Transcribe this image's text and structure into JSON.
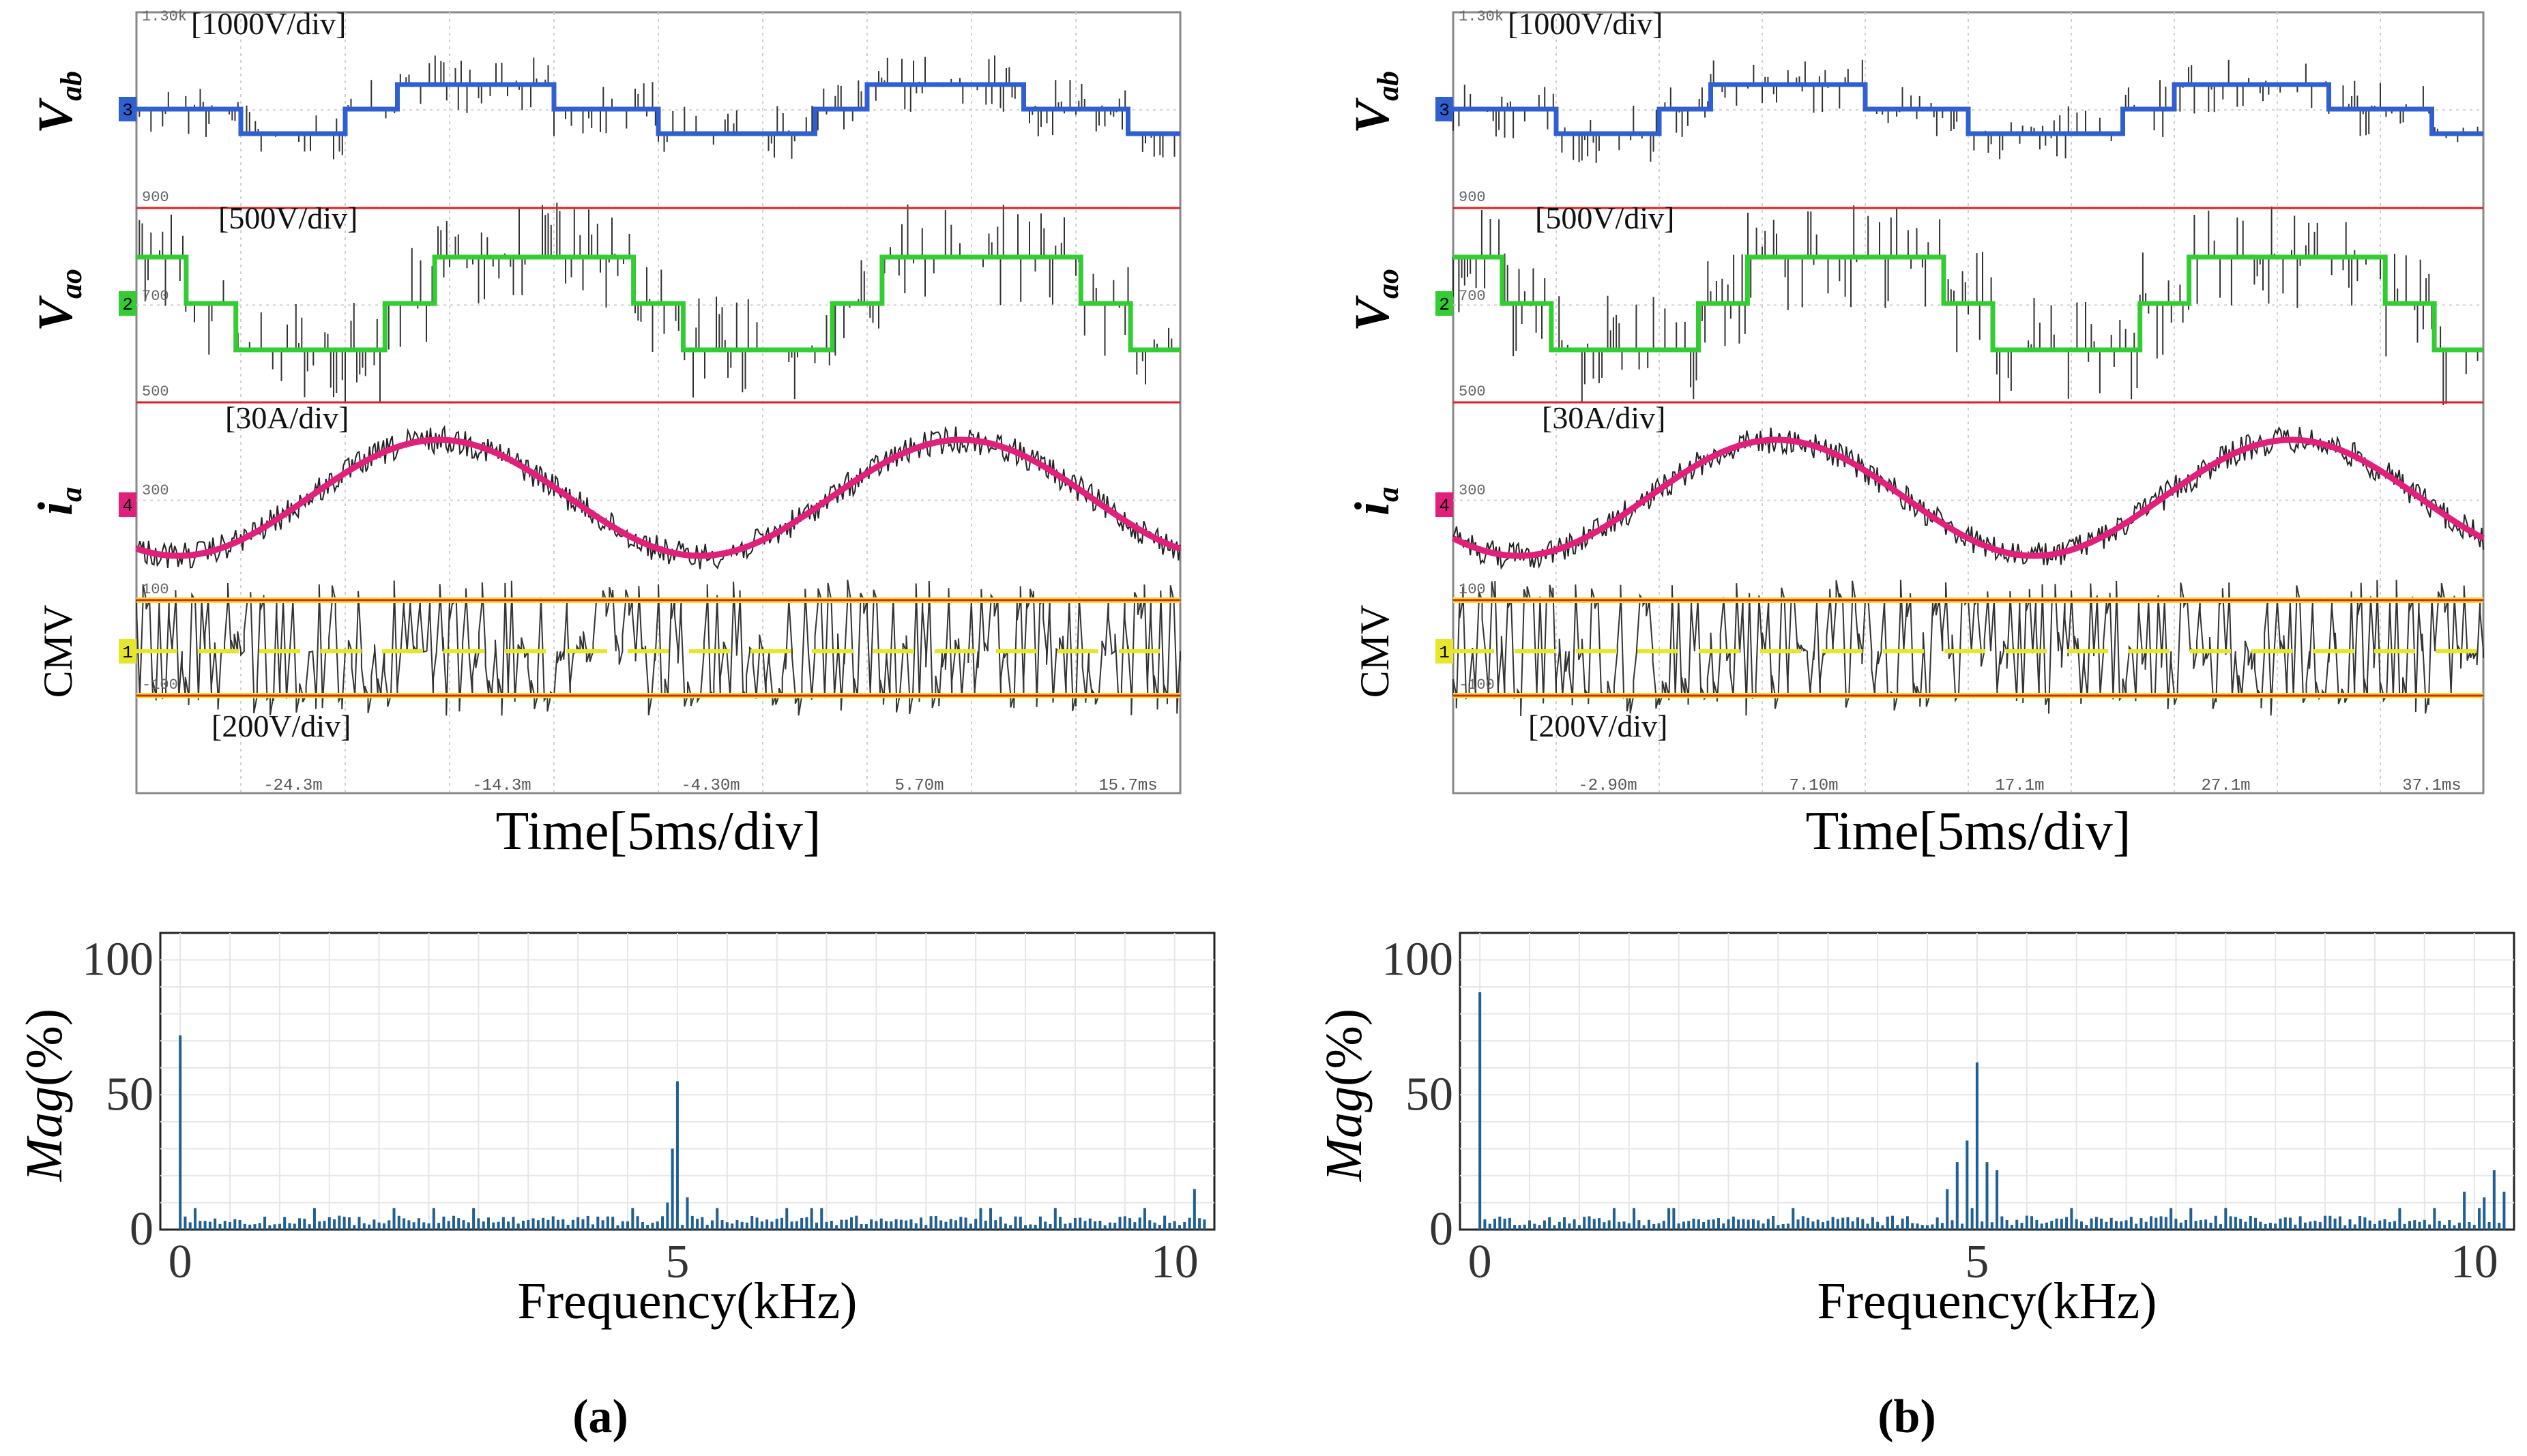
{
  "panels": [
    {
      "id": "a",
      "caption": "(a)",
      "scope": {
        "channels": [
          {
            "name": "V_ab",
            "label_main": "V",
            "label_sub": "ab",
            "scale": "[1000V/div]",
            "levels": [
              "1.30k",
              "900"
            ],
            "marker": "3",
            "color": "#2f5fd0"
          },
          {
            "name": "V_ao",
            "label_main": "V",
            "label_sub": "ao",
            "scale": "[500V/div]",
            "levels": [
              "700",
              "500"
            ],
            "marker": "2",
            "color": "#33cc33"
          },
          {
            "name": "i_a",
            "label_main": "i",
            "label_sub": "a",
            "scale": "[30A/div]",
            "levels": [
              "300"
            ],
            "marker": "4",
            "color": "#e0207a"
          },
          {
            "name": "CMV",
            "label_main": "CMV",
            "label_sub": "",
            "scale": "[200V/div]",
            "levels": [
              "100",
              "-100"
            ],
            "marker": "1",
            "color": "#e6e62e"
          }
        ],
        "time_ticks": [
          "-24.3m",
          "-14.3m",
          "-4.30m",
          "5.70m",
          "15.7ms"
        ],
        "xlabel": "Time[5ms/div]"
      },
      "spectrum": {
        "ylabel_main": "Mag",
        "ylabel_unit": "(%)",
        "xlabel": "Frequency(kHz)",
        "yticks": [
          "0",
          "50",
          "100"
        ],
        "xticks": [
          "0",
          "5",
          "10"
        ]
      }
    },
    {
      "id": "b",
      "caption": "(b)",
      "scope": {
        "channels": [
          {
            "name": "V_ab",
            "label_main": "V",
            "label_sub": "ab",
            "scale": "[1000V/div]",
            "levels": [
              "1.30k",
              "900"
            ],
            "marker": "3",
            "color": "#2f5fd0"
          },
          {
            "name": "V_ao",
            "label_main": "V",
            "label_sub": "ao",
            "scale": "[500V/div]",
            "levels": [
              "700",
              "500"
            ],
            "marker": "2",
            "color": "#33cc33"
          },
          {
            "name": "i_a",
            "label_main": "i",
            "label_sub": "a",
            "scale": "[30A/div]",
            "levels": [
              "300"
            ],
            "marker": "4",
            "color": "#e0207a"
          },
          {
            "name": "CMV",
            "label_main": "CMV",
            "label_sub": "",
            "scale": "[200V/div]",
            "levels": [
              "100",
              "-100"
            ],
            "marker": "1",
            "color": "#e6e62e"
          }
        ],
        "time_ticks": [
          "-2.90m",
          "7.10m",
          "17.1m",
          "27.1m",
          "37.1ms"
        ],
        "xlabel": "Time[5ms/div]"
      },
      "spectrum": {
        "ylabel_main": "Mag",
        "ylabel_unit": "(%)",
        "xlabel": "Frequency(kHz)",
        "yticks": [
          "0",
          "50",
          "100"
        ],
        "xticks": [
          "0",
          "5",
          "10"
        ]
      }
    }
  ],
  "chart_data": [
    {
      "type": "line",
      "panel": "a",
      "description_source": "oscilloscope waveforms",
      "series": [
        {
          "name": "V_ab",
          "x_ms": [
            0,
            3.3,
            6.6,
            10,
            13.3,
            16.7,
            20,
            23.3,
            26.6,
            30,
            33.3,
            36.7,
            40
          ],
          "levels_div": [
            0,
            -1,
            0,
            1,
            1,
            0,
            0,
            -1,
            0,
            1,
            1,
            0,
            -1
          ]
        },
        {
          "name": "V_ao",
          "x_ms": [
            0,
            1,
            5,
            11,
            20,
            24,
            30,
            40
          ],
          "levels_div": [
            0,
            -1,
            -1,
            1,
            1,
            -1,
            1,
            -1
          ]
        },
        {
          "name": "i_a",
          "period_ms": 20,
          "amplitude_div": 1.3
        }
      ],
      "x_ticks": [
        "-24.3m",
        "-14.3m",
        "-4.30m",
        "5.70m",
        "15.7ms"
      ]
    },
    {
      "type": "bar",
      "panel": "a",
      "xlabel": "Frequency(kHz)",
      "ylabel": "Mag(%)",
      "xlim": [
        -0.2,
        10.4
      ],
      "ylim": [
        0,
        110
      ],
      "peaks": [
        {
          "x": 0.0,
          "y": 72
        },
        {
          "x": 4.9,
          "y": 10
        },
        {
          "x": 4.95,
          "y": 30
        },
        {
          "x": 5.0,
          "y": 55
        },
        {
          "x": 5.1,
          "y": 12
        },
        {
          "x": 10.2,
          "y": 15
        }
      ],
      "baseline": 4
    },
    {
      "type": "bar",
      "panel": "b",
      "xlabel": "Frequency(kHz)",
      "ylabel": "Mag(%)",
      "xlim": [
        -0.2,
        10.4
      ],
      "ylim": [
        0,
        110
      ],
      "peaks": [
        {
          "x": 0.0,
          "y": 88
        },
        {
          "x": 4.7,
          "y": 15
        },
        {
          "x": 4.8,
          "y": 25
        },
        {
          "x": 4.9,
          "y": 33
        },
        {
          "x": 5.0,
          "y": 62
        },
        {
          "x": 5.1,
          "y": 25
        },
        {
          "x": 5.2,
          "y": 22
        },
        {
          "x": 9.9,
          "y": 14
        },
        {
          "x": 10.1,
          "y": 12
        },
        {
          "x": 10.2,
          "y": 22
        },
        {
          "x": 10.3,
          "y": 14
        }
      ],
      "baseline": 4
    }
  ]
}
